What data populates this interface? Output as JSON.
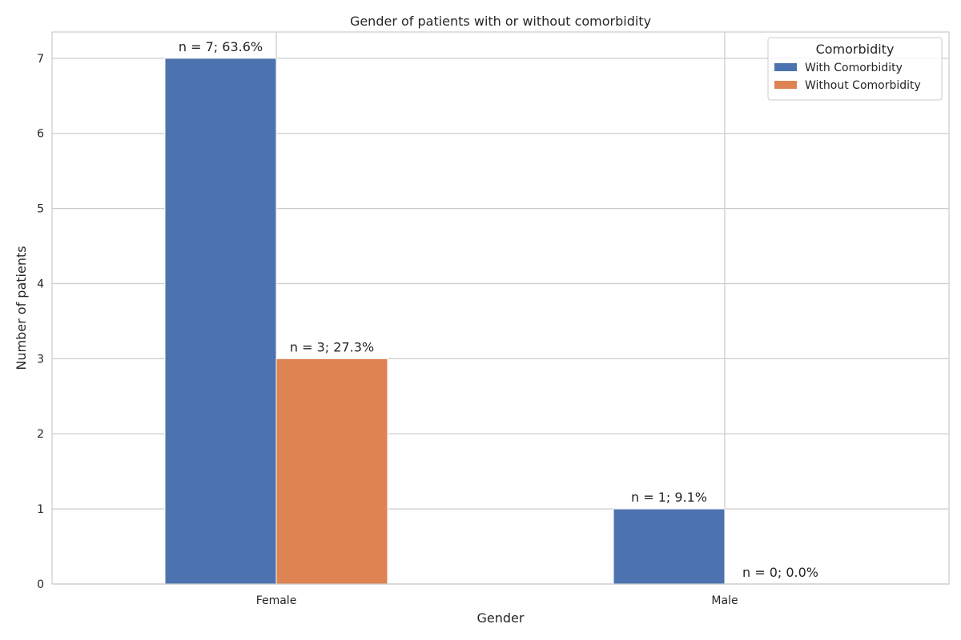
{
  "chart_data": {
    "type": "bar",
    "title": "Gender of patients with or without comorbidity",
    "xlabel": "Gender",
    "ylabel": "Number of patients",
    "categories": [
      "Female",
      "Male"
    ],
    "series": [
      {
        "name": "With Comorbidity",
        "color": "#4c72b0",
        "values": [
          7,
          1
        ],
        "labels": [
          "n = 7; 63.6%",
          "n = 1; 9.1%"
        ]
      },
      {
        "name": "Without Comorbidity",
        "color": "#dd8452",
        "values": [
          3,
          0
        ],
        "labels": [
          "n = 3; 27.3%",
          "n = 0; 0.0%"
        ]
      }
    ],
    "ylim": [
      0,
      7.35
    ],
    "yticks": [
      0,
      1,
      2,
      3,
      4,
      5,
      6,
      7
    ],
    "grid": true,
    "legend": {
      "title": "Comorbidity",
      "position": "top-right"
    }
  }
}
